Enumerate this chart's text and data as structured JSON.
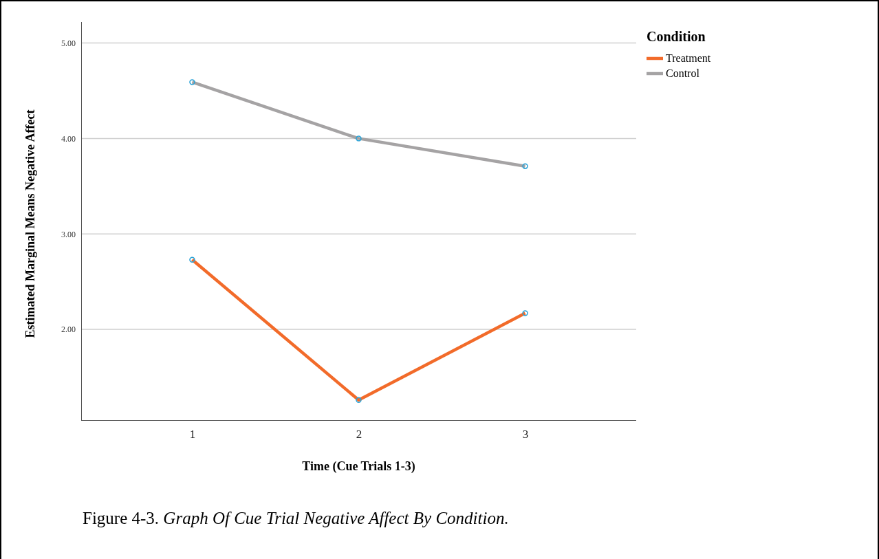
{
  "chart_data": {
    "type": "line",
    "xlabel": "Time (Cue Trials 1-3)",
    "ylabel": "Estimated Marginal Means Negative Affect",
    "legend_title": "Condition",
    "categories": [
      "1",
      "2",
      "3"
    ],
    "series": [
      {
        "name": "Treatment",
        "color": "#f26b2a",
        "values": [
          2.73,
          1.26,
          2.17
        ]
      },
      {
        "name": "Control",
        "color": "#a5a3a4",
        "values": [
          4.59,
          4.0,
          3.71
        ]
      }
    ],
    "ylim": [
      1.05,
      5.22
    ],
    "yticks": [
      {
        "value": 2,
        "label": "2.00"
      },
      {
        "value": 3,
        "label": "3.00"
      },
      {
        "value": 4,
        "label": "4.00"
      },
      {
        "value": 5,
        "label": "5.00"
      }
    ],
    "grid": "y",
    "legend": "top right",
    "marker": "circle",
    "line_style": "solid",
    "annotations": [
      "Figure 4-3. Graph Of Cue Trial Negative Affect By Condition."
    ]
  }
}
